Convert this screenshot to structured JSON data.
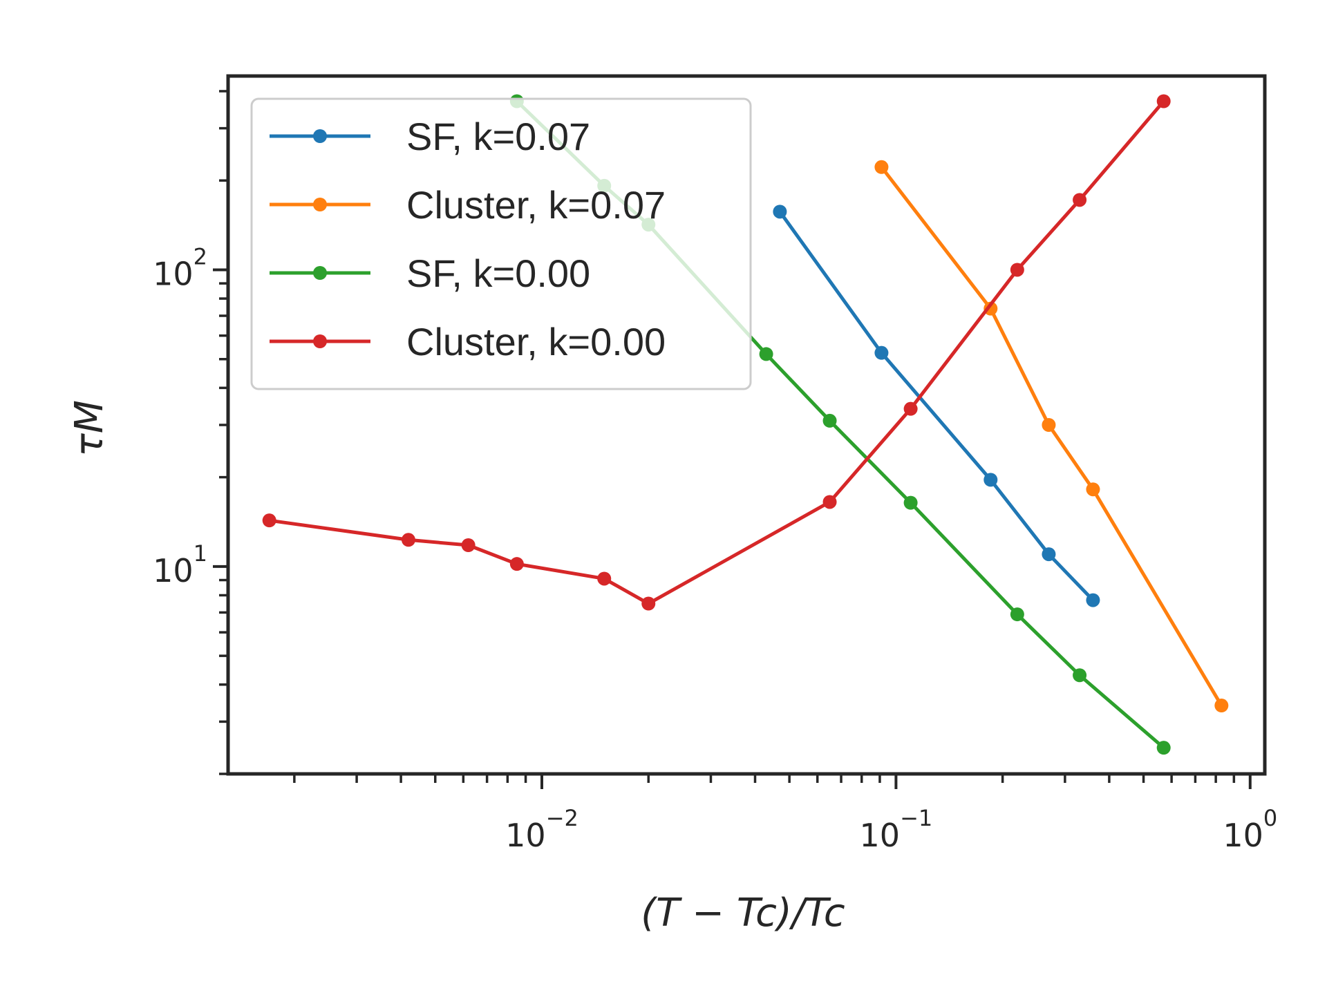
{
  "chart_data": {
    "type": "line",
    "xscale": "log",
    "yscale": "log",
    "xlim": [
      0.0013,
      1.1
    ],
    "ylim": [
      2.0,
      450
    ],
    "xlabel": "(T − Tc)/Tc",
    "ylabel": "τM",
    "x_ticks": [
      {
        "base": "10",
        "exp": "−2",
        "value": 0.01
      },
      {
        "base": "10",
        "exp": "−1",
        "value": 0.1
      },
      {
        "base": "10",
        "exp": "0",
        "value": 1
      }
    ],
    "y_ticks": [
      {
        "base": "10",
        "exp": "1",
        "value": 10
      },
      {
        "base": "10",
        "exp": "2",
        "value": 100
      }
    ],
    "grid": false,
    "legend_position": "top-left",
    "series": [
      {
        "name": "SF, k=0.07",
        "color": "#1f77b4",
        "points": [
          [
            0.047,
            157
          ],
          [
            0.091,
            52.5
          ],
          [
            0.185,
            19.6
          ],
          [
            0.27,
            11.0
          ],
          [
            0.36,
            7.7
          ]
        ]
      },
      {
        "name": "Cluster, k=0.07",
        "color": "#ff7f0e",
        "points": [
          [
            0.091,
            222
          ],
          [
            0.185,
            74
          ],
          [
            0.27,
            30
          ],
          [
            0.36,
            18.2
          ],
          [
            0.83,
            3.4
          ]
        ]
      },
      {
        "name": "SF, k=0.00",
        "color": "#2ca02c",
        "points": [
          [
            0.0085,
            370
          ],
          [
            0.015,
            192
          ],
          [
            0.02,
            142
          ],
          [
            0.043,
            52
          ],
          [
            0.065,
            31
          ],
          [
            0.11,
            16.4
          ],
          [
            0.22,
            6.9
          ],
          [
            0.33,
            4.3
          ],
          [
            0.57,
            2.45
          ]
        ]
      },
      {
        "name": "Cluster, k=0.00",
        "color": "#d62728",
        "points": [
          [
            0.0017,
            14.3
          ],
          [
            0.0042,
            12.3
          ],
          [
            0.0062,
            11.8
          ],
          [
            0.0085,
            10.2
          ],
          [
            0.015,
            9.1
          ],
          [
            0.02,
            7.5
          ],
          [
            0.065,
            16.5
          ],
          [
            0.11,
            34
          ],
          [
            0.22,
            100
          ],
          [
            0.33,
            172
          ],
          [
            0.57,
            370
          ]
        ]
      }
    ]
  }
}
